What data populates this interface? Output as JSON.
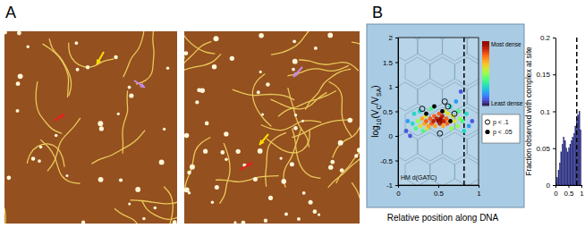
{
  "panel_labels": [
    "A",
    "B"
  ],
  "chart_data": [
    {
      "type": "scatter",
      "x_label": "Relative position along DNA",
      "y_label": [
        "log",
        "10",
        "(V",
        "C",
        "/V",
        "SA",
        ")"
      ],
      "annotations": [
        "HM d(GATC)"
      ],
      "xlim": [
        0,
        1
      ],
      "xticks": [
        0,
        0.5,
        1
      ],
      "ylim": [
        -1,
        2
      ],
      "yticks": [
        -1,
        -0.5,
        0,
        0.5,
        1,
        1.5,
        2
      ],
      "reference_x": 0.82,
      "colorbar_range": [
        0,
        1
      ],
      "colorbar_labels": [
        "Most dense",
        "Least dense"
      ],
      "series": [
        {
          "marker": "density",
          "x": [
            0.1,
            0.12,
            0.15,
            0.18,
            0.2,
            0.22,
            0.25,
            0.27,
            0.28,
            0.3,
            0.31,
            0.33,
            0.34,
            0.35,
            0.36,
            0.38,
            0.4,
            0.41,
            0.42,
            0.44,
            0.45,
            0.46,
            0.48,
            0.5,
            0.51,
            0.52,
            0.53,
            0.54,
            0.55,
            0.56,
            0.57,
            0.58,
            0.6,
            0.61,
            0.62,
            0.64,
            0.65,
            0.66,
            0.68,
            0.7,
            0.72,
            0.74,
            0.75,
            0.77,
            0.78,
            0.8,
            0.82,
            0.85,
            0.88,
            0.92
          ],
          "values": [
            0.1,
            0.3,
            0.0,
            0.25,
            0.45,
            0.15,
            0.3,
            0.5,
            0.2,
            0.35,
            0.1,
            0.25,
            0.4,
            0.3,
            0.15,
            0.2,
            0.35,
            0.55,
            0.25,
            0.3,
            0.4,
            0.2,
            0.35,
            0.3,
            0.45,
            0.25,
            0.35,
            0.3,
            0.4,
            0.2,
            0.3,
            0.5,
            0.35,
            0.25,
            0.45,
            0.3,
            0.6,
            0.15,
            0.4,
            0.3,
            0.7,
            0.2,
            0.5,
            0.35,
            0.9,
            0.3,
            0.1,
            0.45,
            0.2,
            0.3
          ],
          "density": [
            0.1,
            0.2,
            0.1,
            0.3,
            0.3,
            0.4,
            0.5,
            0.3,
            0.6,
            0.7,
            0.4,
            0.7,
            0.6,
            0.8,
            0.6,
            0.7,
            0.8,
            0.4,
            0.8,
            0.9,
            0.8,
            0.7,
            0.9,
            1.0,
            0.8,
            0.9,
            1.0,
            1.0,
            0.9,
            0.7,
            0.9,
            0.6,
            0.8,
            0.8,
            0.6,
            0.7,
            0.3,
            0.5,
            0.6,
            0.6,
            0.2,
            0.5,
            0.4,
            0.5,
            0.1,
            0.4,
            0.3,
            0.3,
            0.2,
            0.1
          ]
        },
        {
          "name": "p < .1",
          "marker": "open",
          "color": "#000000",
          "x": [
            0.3,
            0.52,
            0.62,
            0.7,
            0.58
          ],
          "values": [
            0.55,
            0.05,
            0.6,
            0.45,
            0.7
          ]
        },
        {
          "name": "p < .05",
          "marker": "filled",
          "color": "#000000",
          "x": [
            0.45,
            0.55,
            0.65,
            0.35
          ],
          "values": [
            0.6,
            0.5,
            0.3,
            0.45
          ]
        }
      ]
    },
    {
      "type": "histogram",
      "y_label": "Fraction observed with complex at site",
      "bins": [
        0,
        0.05,
        0.1,
        0.15,
        0.2,
        0.25,
        0.3,
        0.35,
        0.4,
        0.45,
        0.5,
        0.55,
        0.6,
        0.65,
        0.7,
        0.75,
        0.8,
        0.85,
        0.9,
        0.95,
        1
      ],
      "counts": [
        0.005,
        0.01,
        0.02,
        0.03,
        0.045,
        0.055,
        0.065,
        0.06,
        0.05,
        0.045,
        0.05,
        0.055,
        0.06,
        0.065,
        0.07,
        0.08,
        0.09,
        0.095,
        0.1,
        0.075
      ],
      "color": "#2b2f8f",
      "xlim": [
        0,
        1
      ],
      "xticks": [
        0,
        0.5,
        1
      ],
      "ylim": [
        0,
        0.2
      ],
      "yticks": [
        0,
        0.05,
        0.1,
        0.15,
        0.2
      ],
      "reference_x": 0.82
    }
  ]
}
